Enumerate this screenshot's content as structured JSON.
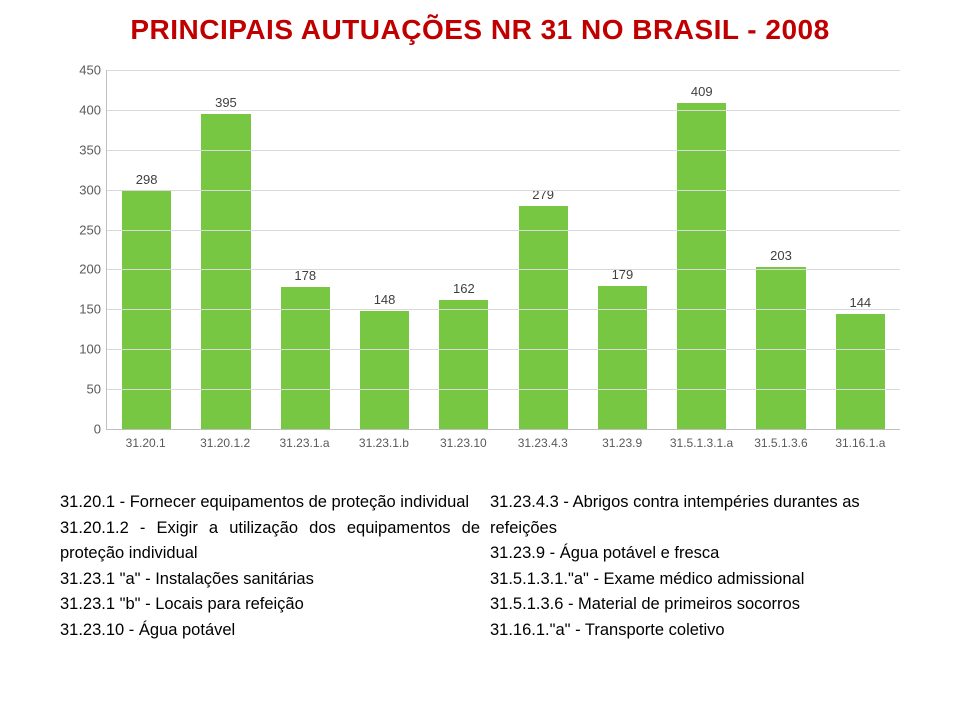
{
  "title": {
    "text": "PRINCIPAIS AUTUAÇÕES NR 31 NO BRASIL - 2008",
    "color": "#c00000",
    "fontsize": 28
  },
  "chart": {
    "type": "bar",
    "ylim": [
      0,
      450
    ],
    "ytick_step": 50,
    "yticks": [
      0,
      50,
      100,
      150,
      200,
      250,
      300,
      350,
      400,
      450
    ],
    "categories": [
      "31.20.1",
      "31.20.1.2",
      "31.23.1.a",
      "31.23.1.b",
      "31.23.10",
      "31.23.4.3",
      "31.23.9",
      "31.5.1.3.1.a",
      "31.5.1.3.6",
      "31.16.1.a"
    ],
    "values": [
      298,
      395,
      178,
      148,
      162,
      279,
      179,
      409,
      203,
      144
    ],
    "bar_color": "#77c742",
    "grid_color": "#d9d9d9",
    "axis_color": "#bfbfbf",
    "label_color": "#595959",
    "value_label_color": "#404040",
    "label_fontsize": 12,
    "value_fontsize": 13,
    "background_color": "#ffffff"
  },
  "legend": {
    "left": [
      "31.20.1 - Fornecer equipamentos de proteção individual",
      "31.20.1.2 - Exigir a utilização dos equipamentos de proteção individual",
      "31.23.1 \"a\" - Instalações sanitárias",
      "31.23.1 \"b\" - Locais para refeição",
      "31.23.10 - Água potável"
    ],
    "right": [
      "31.23.4.3 - Abrigos contra intempéries durantes as refeições",
      "31.23.9 - Água potável e fresca",
      "31.5.1.3.1.\"a\" - Exame médico admissional",
      "31.5.1.3.6 - Material de primeiros socorros",
      "31.16.1.\"a\" - Transporte coletivo"
    ]
  }
}
